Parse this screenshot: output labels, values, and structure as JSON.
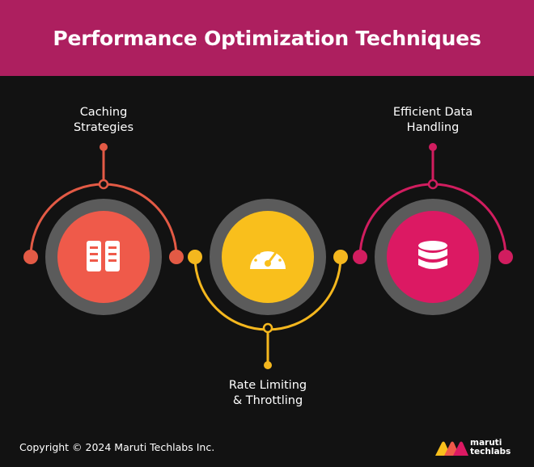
{
  "title": "Performance Optimization Techniques",
  "techniques": [
    {
      "label_lines": [
        "Caching",
        "Strategies"
      ],
      "icon": "server-icon",
      "color": "#ef5a4a",
      "ring_color": "#e35a45"
    },
    {
      "label_lines": [
        "Rate Limiting",
        "& Throttling"
      ],
      "icon": "speedometer-icon",
      "color": "#f9bf1c",
      "ring_color": "#f4b71e"
    },
    {
      "label_lines": [
        "Efficient Data",
        "Handling"
      ],
      "icon": "database-icon",
      "color": "#dc1963",
      "ring_color": "#d11d5f"
    }
  ],
  "footer": {
    "copyright": "Copyright © 2024 Maruti Techlabs Inc.",
    "logo_line1": "maruti",
    "logo_line2": "techlabs"
  }
}
